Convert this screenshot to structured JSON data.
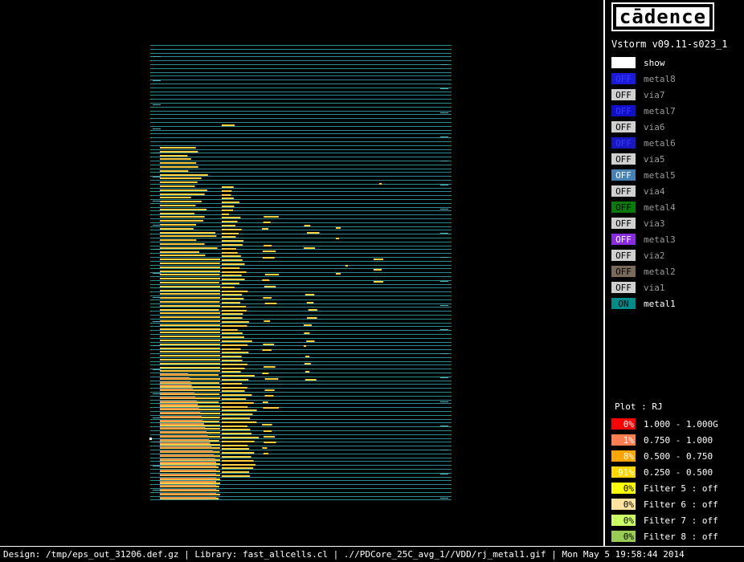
{
  "app": {
    "logo": "cādence",
    "version": "Vstorm v09.11-s023_1"
  },
  "layers": [
    {
      "state": "",
      "name": "show",
      "color": "#ffffff",
      "text_color": "#000000"
    },
    {
      "state": "OFF",
      "name": "metal8",
      "color": "#1a1ad8",
      "text_color": "#3b3bff"
    },
    {
      "state": "OFF",
      "name": "via7",
      "color": "#d0d0d0",
      "text_color": "#000000"
    },
    {
      "state": "OFF",
      "name": "metal7",
      "color": "#1010c8",
      "text_color": "#3b3bff"
    },
    {
      "state": "OFF",
      "name": "via6",
      "color": "#d0d0d0",
      "text_color": "#000000"
    },
    {
      "state": "OFF",
      "name": "metal6",
      "color": "#1818c0",
      "text_color": "#3b3bff"
    },
    {
      "state": "OFF",
      "name": "via5",
      "color": "#d0d0d0",
      "text_color": "#000000"
    },
    {
      "state": "OFF",
      "name": "metal5",
      "color": "#4682b4",
      "text_color": "#ffffff"
    },
    {
      "state": "OFF",
      "name": "via4",
      "color": "#d0d0d0",
      "text_color": "#000000"
    },
    {
      "state": "OFF",
      "name": "metal4",
      "color": "#0a7a0a",
      "text_color": "#000000"
    },
    {
      "state": "OFF",
      "name": "via3",
      "color": "#d0d0d0",
      "text_color": "#000000"
    },
    {
      "state": "OFF",
      "name": "metal3",
      "color": "#8a2be2",
      "text_color": "#ffffff"
    },
    {
      "state": "OFF",
      "name": "via2",
      "color": "#d0d0d0",
      "text_color": "#000000"
    },
    {
      "state": "OFF",
      "name": "metal2",
      "color": "#7a6a5a",
      "text_color": "#000000"
    },
    {
      "state": "OFF",
      "name": "via1",
      "color": "#d0d0d0",
      "text_color": "#000000"
    },
    {
      "state": "ON",
      "name": "metal1",
      "color": "#008b8b",
      "text_color": "#000000"
    }
  ],
  "plot": {
    "label": "Plot : RJ",
    "legend": [
      {
        "pct": "0%",
        "range": "1.000 - 1.000G",
        "color": "#ff0000"
      },
      {
        "pct": "1%",
        "range": "0.750 - 1.000",
        "color": "#ff7f50"
      },
      {
        "pct": "8%",
        "range": "0.500 - 0.750",
        "color": "#ffa500"
      },
      {
        "pct": "91%",
        "range": "0.250 - 0.500",
        "color": "#ffd700"
      },
      {
        "pct": "0%",
        "range": "Filter 5 : off",
        "color": "#ffff00"
      },
      {
        "pct": "0%",
        "range": "Filter 6 : off",
        "color": "#ffe4a0"
      },
      {
        "pct": "0%",
        "range": "Filter 7 : off",
        "color": "#ccff66"
      },
      {
        "pct": "0%",
        "range": "Filter 8 : off",
        "color": "#99cc55"
      }
    ]
  },
  "status": {
    "text": "Design: /tmp/eps_out_31206.def.gz | Library: fast_allcells.cl | .//PDCore_25C_avg_1//VDD/rj_metal1.gif | Mon May  5 19:58:44 2014"
  },
  "canvas": {
    "track_color": "#2e8b8b",
    "fill_color": "#ffd040",
    "hot_color": "#e8904a"
  }
}
